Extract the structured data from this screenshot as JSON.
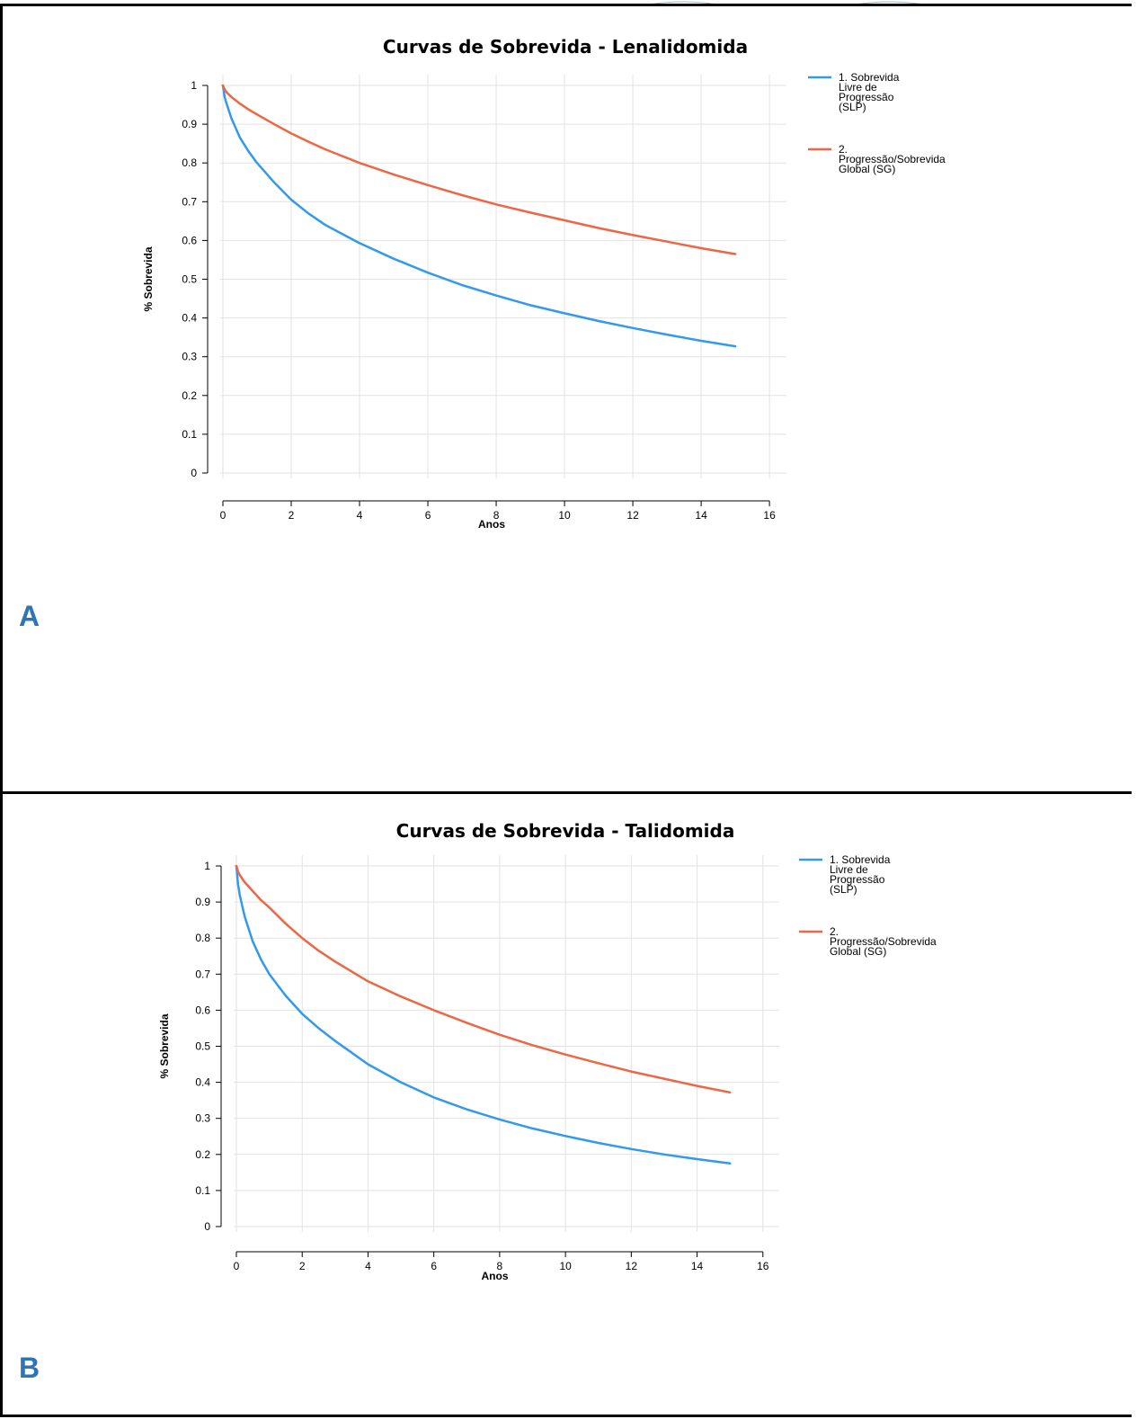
{
  "chart_data": [
    {
      "type": "line",
      "panel_label": "A",
      "title": "Curvas de Sobrevida - Lenalidomida",
      "xlabel": "Anos",
      "ylabel": "% Sobrevida",
      "xlim": [
        0,
        16
      ],
      "ylim": [
        0,
        1
      ],
      "xticks": [
        "0",
        "2",
        "4",
        "6",
        "8",
        "10",
        "12",
        "14",
        "16"
      ],
      "yticks": [
        "0",
        "0.1",
        "0.2",
        "0.3",
        "0.4",
        "0.5",
        "0.6",
        "0.7",
        "0.8",
        "0.9",
        "1"
      ],
      "grid": true,
      "legend_position": "right",
      "series": [
        {
          "name": "1. Sobrevida Livre de Progressão (SLP)",
          "legend_lines": [
            "1. Sobrevida",
            "Livre de",
            "Progressão",
            "(SLP)"
          ],
          "color": "#3399ee",
          "x": [
            0,
            0.05,
            0.1,
            0.25,
            0.5,
            0.75,
            1,
            1.5,
            2,
            2.5,
            3,
            4,
            5,
            6,
            7,
            8,
            9,
            10,
            11,
            12,
            13,
            14,
            15
          ],
          "y": [
            1,
            0.97,
            0.955,
            0.915,
            0.865,
            0.83,
            0.8,
            0.75,
            0.705,
            0.67,
            0.64,
            0.593,
            0.553,
            0.517,
            0.485,
            0.458,
            0.433,
            0.412,
            0.392,
            0.374,
            0.357,
            0.341,
            0.327
          ]
        },
        {
          "name": "2. Progressão/Sobrevida Global (SG)",
          "legend_lines": [
            "2.",
            "Progressão/Sobrevida",
            "Global (SG)"
          ],
          "color": "#ee6644",
          "x": [
            0,
            0.05,
            0.1,
            0.25,
            0.5,
            0.75,
            1,
            1.5,
            2,
            2.5,
            3,
            4,
            5,
            6,
            7,
            8,
            9,
            10,
            11,
            12,
            13,
            14,
            15
          ],
          "y": [
            1,
            0.99,
            0.983,
            0.97,
            0.953,
            0.938,
            0.925,
            0.9,
            0.876,
            0.855,
            0.835,
            0.8,
            0.77,
            0.743,
            0.717,
            0.693,
            0.672,
            0.652,
            0.632,
            0.614,
            0.597,
            0.58,
            0.565
          ]
        }
      ]
    },
    {
      "type": "line",
      "panel_label": "B",
      "title": "Curvas de Sobrevida - Talidomida",
      "xlabel": "Anos",
      "ylabel": "% Sobrevida",
      "xlim": [
        0,
        16
      ],
      "ylim": [
        0,
        1
      ],
      "xticks": [
        "0",
        "2",
        "4",
        "6",
        "8",
        "10",
        "12",
        "14",
        "16"
      ],
      "yticks": [
        "0",
        "0.1",
        "0.2",
        "0.3",
        "0.4",
        "0.5",
        "0.6",
        "0.7",
        "0.8",
        "0.9",
        "1"
      ],
      "grid": true,
      "legend_position": "right",
      "series": [
        {
          "name": "1. Sobrevida Livre de Progressão (SLP)",
          "legend_lines": [
            "1. Sobrevida",
            "Livre de",
            "Progressão",
            "(SLP)"
          ],
          "color": "#3399ee",
          "x": [
            0,
            0.05,
            0.1,
            0.25,
            0.5,
            0.75,
            1,
            1.5,
            2,
            2.5,
            3,
            4,
            5,
            6,
            7,
            8,
            9,
            10,
            11,
            12,
            13,
            14,
            15
          ],
          "y": [
            1,
            0.95,
            0.92,
            0.86,
            0.79,
            0.74,
            0.7,
            0.64,
            0.59,
            0.55,
            0.515,
            0.45,
            0.4,
            0.358,
            0.325,
            0.297,
            0.272,
            0.251,
            0.232,
            0.215,
            0.2,
            0.187,
            0.175
          ]
        },
        {
          "name": "2. Progressão/Sobrevida Global (SG)",
          "legend_lines": [
            "2.",
            "Progressão/Sobrevida",
            "Global (SG)"
          ],
          "color": "#ee6644",
          "x": [
            0,
            0.05,
            0.1,
            0.25,
            0.5,
            0.75,
            1,
            1.5,
            2,
            2.5,
            3,
            4,
            5,
            6,
            7,
            8,
            9,
            10,
            11,
            12,
            13,
            14,
            15
          ],
          "y": [
            1,
            0.985,
            0.975,
            0.955,
            0.93,
            0.905,
            0.885,
            0.84,
            0.8,
            0.765,
            0.735,
            0.68,
            0.638,
            0.6,
            0.565,
            0.532,
            0.503,
            0.477,
            0.453,
            0.43,
            0.41,
            0.39,
            0.372
          ]
        }
      ]
    }
  ]
}
